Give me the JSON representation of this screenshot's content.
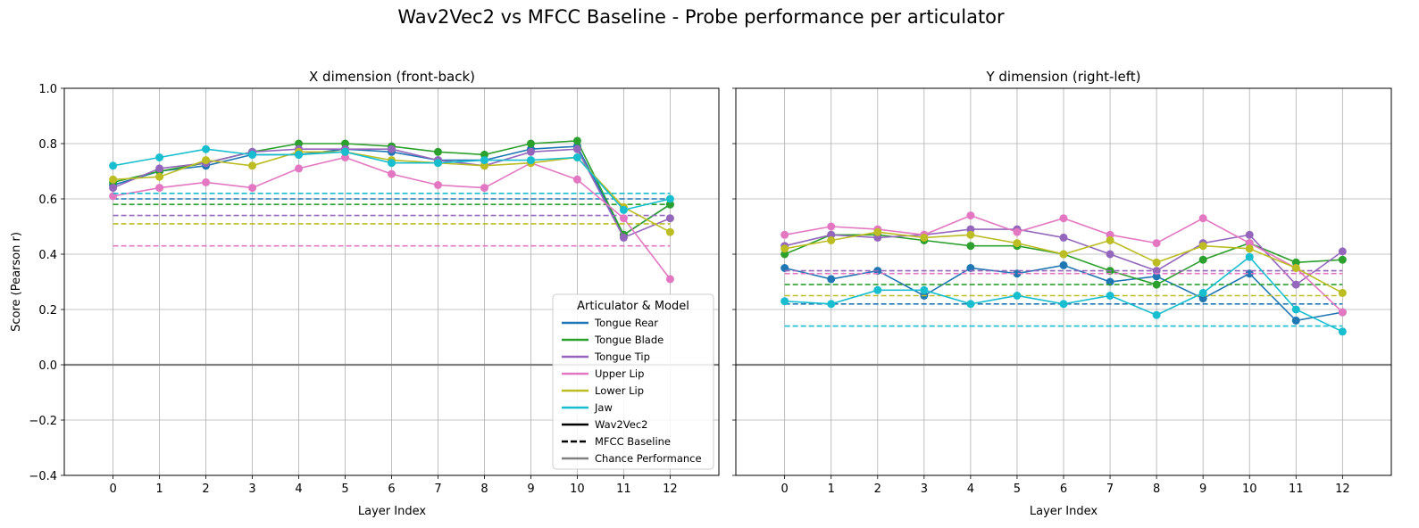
{
  "suptitle": "Wav2Vec2 vs MFCC Baseline - Probe performance per articulator",
  "chart_data": [
    {
      "type": "line",
      "title": "X dimension (front-back)",
      "xlabel": "Layer Index",
      "ylabel": "Score (Pearson r)",
      "x": [
        0,
        1,
        2,
        3,
        4,
        5,
        6,
        7,
        8,
        9,
        10,
        11,
        12
      ],
      "ylim": [
        -0.4,
        1.0
      ],
      "yticks": [
        "−0.4",
        "−0.2",
        "0.0",
        "0.2",
        "0.4",
        "0.6",
        "0.8",
        "1.0"
      ],
      "grid": true,
      "chance_level": 0.0,
      "series": [
        {
          "name": "Tongue Rear",
          "color": "#1f77b4",
          "values": [
            0.65,
            0.7,
            0.72,
            0.76,
            0.76,
            0.78,
            0.77,
            0.74,
            0.74,
            0.78,
            0.79,
            0.47,
            0.58
          ],
          "baseline": 0.6
        },
        {
          "name": "Tongue Blade",
          "color": "#2ca02c",
          "values": [
            0.66,
            0.7,
            0.73,
            0.77,
            0.8,
            0.8,
            0.79,
            0.77,
            0.76,
            0.8,
            0.81,
            0.47,
            0.58
          ],
          "baseline": 0.58
        },
        {
          "name": "Tongue Tip",
          "color": "#9467bd",
          "values": [
            0.64,
            0.71,
            0.73,
            0.77,
            0.78,
            0.78,
            0.78,
            0.74,
            0.72,
            0.77,
            0.78,
            0.46,
            0.53
          ],
          "baseline": 0.54
        },
        {
          "name": "Upper Lip",
          "color": "#e377c2",
          "values": [
            0.61,
            0.64,
            0.66,
            0.64,
            0.71,
            0.75,
            0.69,
            0.65,
            0.64,
            0.73,
            0.67,
            0.53,
            0.31
          ],
          "baseline": 0.43
        },
        {
          "name": "Lower Lip",
          "color": "#bcbd22",
          "values": [
            0.67,
            0.68,
            0.74,
            0.72,
            0.77,
            0.77,
            0.74,
            0.73,
            0.72,
            0.73,
            0.75,
            0.57,
            0.48
          ],
          "baseline": 0.51
        },
        {
          "name": "Jaw",
          "color": "#17becf",
          "values": [
            0.72,
            0.75,
            0.78,
            0.76,
            0.76,
            0.77,
            0.73,
            0.73,
            0.74,
            0.74,
            0.75,
            0.56,
            0.6
          ],
          "baseline": 0.62
        }
      ]
    },
    {
      "type": "line",
      "title": "Y dimension (right-left)",
      "xlabel": "Layer Index",
      "ylabel": "",
      "x": [
        0,
        1,
        2,
        3,
        4,
        5,
        6,
        7,
        8,
        9,
        10,
        11,
        12
      ],
      "ylim": [
        -0.4,
        1.0
      ],
      "grid": true,
      "chance_level": 0.0,
      "series": [
        {
          "name": "Tongue Rear",
          "color": "#1f77b4",
          "values": [
            0.35,
            0.31,
            0.34,
            0.25,
            0.35,
            0.33,
            0.36,
            0.3,
            0.32,
            0.24,
            0.33,
            0.16,
            0.19
          ],
          "baseline": 0.22
        },
        {
          "name": "Tongue Blade",
          "color": "#2ca02c",
          "values": [
            0.4,
            0.47,
            0.47,
            0.45,
            0.43,
            0.43,
            0.4,
            0.34,
            0.29,
            0.38,
            0.44,
            0.37,
            0.38
          ],
          "baseline": 0.29
        },
        {
          "name": "Tongue Tip",
          "color": "#9467bd",
          "values": [
            0.43,
            0.47,
            0.46,
            0.47,
            0.49,
            0.49,
            0.46,
            0.4,
            0.34,
            0.44,
            0.47,
            0.29,
            0.41
          ],
          "baseline": 0.34
        },
        {
          "name": "Upper Lip",
          "color": "#e377c2",
          "values": [
            0.47,
            0.5,
            0.49,
            0.47,
            0.54,
            0.48,
            0.53,
            0.47,
            0.44,
            0.53,
            0.44,
            0.35,
            0.19
          ],
          "baseline": 0.33
        },
        {
          "name": "Lower Lip",
          "color": "#bcbd22",
          "values": [
            0.42,
            0.45,
            0.48,
            0.46,
            0.47,
            0.44,
            0.4,
            0.45,
            0.37,
            0.43,
            0.42,
            0.35,
            0.26
          ],
          "baseline": 0.25
        },
        {
          "name": "Jaw",
          "color": "#17becf",
          "values": [
            0.23,
            0.22,
            0.27,
            0.27,
            0.22,
            0.25,
            0.22,
            0.25,
            0.18,
            0.26,
            0.39,
            0.2,
            0.12
          ],
          "baseline": 0.14
        }
      ]
    }
  ],
  "legend": {
    "title": "Articulator & Model",
    "placement": "lower-right of left panel",
    "entries": [
      {
        "label": "Tongue Rear",
        "color": "#1f77b4",
        "style": "solid"
      },
      {
        "label": "Tongue Blade",
        "color": "#2ca02c",
        "style": "solid"
      },
      {
        "label": "Tongue Tip",
        "color": "#9467bd",
        "style": "solid"
      },
      {
        "label": "Upper Lip",
        "color": "#e377c2",
        "style": "solid"
      },
      {
        "label": "Lower Lip",
        "color": "#bcbd22",
        "style": "solid"
      },
      {
        "label": "Jaw",
        "color": "#17becf",
        "style": "solid"
      },
      {
        "label": "Wav2Vec2",
        "color": "#000000",
        "style": "solid"
      },
      {
        "label": "MFCC Baseline",
        "color": "#000000",
        "style": "dashed"
      },
      {
        "label": "Chance Performance",
        "color": "#808080",
        "style": "solid"
      }
    ]
  }
}
